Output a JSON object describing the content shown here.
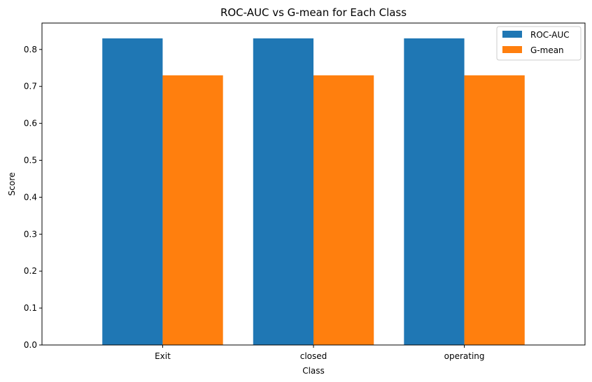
{
  "chart_data": {
    "type": "bar",
    "title": "ROC-AUC vs G-mean for Each Class",
    "xlabel": "Class",
    "ylabel": "Score",
    "categories": [
      "Exit",
      "closed",
      "operating"
    ],
    "series": [
      {
        "name": "ROC-AUC",
        "color": "#1f77b4",
        "values": [
          0.83,
          0.83,
          0.83
        ]
      },
      {
        "name": "G-mean",
        "color": "#ff7f0e",
        "values": [
          0.73,
          0.73,
          0.73
        ]
      }
    ],
    "ylim": [
      0,
      0.8715
    ],
    "yticks": [
      "0.0",
      "0.1",
      "0.2",
      "0.3",
      "0.4",
      "0.5",
      "0.6",
      "0.7",
      "0.8"
    ],
    "legend_position": "top-right",
    "grid": false
  }
}
